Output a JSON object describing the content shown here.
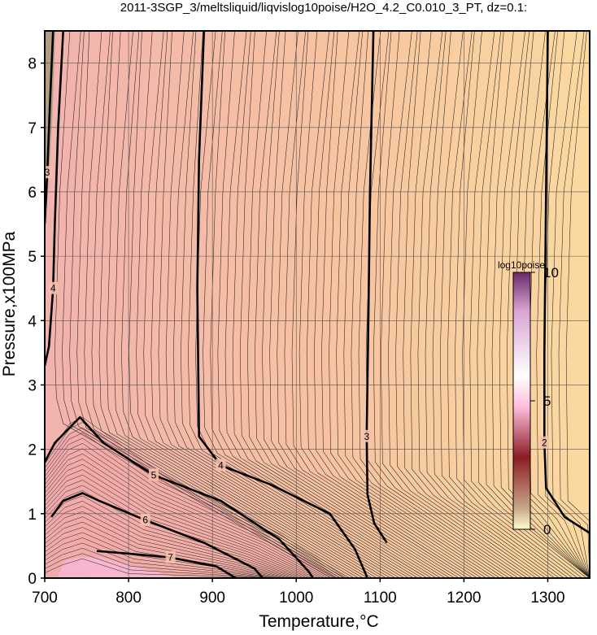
{
  "chart_data": {
    "type": "heatmap",
    "title": "2011-3SGP_3/meltsliquid/liqvislog10poise/H2O_4.2_C0.010_3_PT, dz=0.1:",
    "xlabel": "Temperature,°C",
    "ylabel": "Pressure,x100MPa",
    "xlim": [
      700,
      1350
    ],
    "ylim": [
      0,
      8.5
    ],
    "xticks": [
      700,
      800,
      900,
      1000,
      1100,
      1200,
      1300
    ],
    "yticks": [
      0,
      1,
      2,
      3,
      4,
      5,
      6,
      7,
      8
    ],
    "grid": true,
    "colorbar": {
      "label": "log10poise",
      "range": [
        0,
        10
      ],
      "ticks": [
        0,
        5,
        10
      ],
      "stops": [
        "#ffffcc",
        "#c9a98a",
        "#8c1c24",
        "#ffc0e0",
        "#ffffff",
        "#d9a4d2",
        "#6a2a6a"
      ]
    },
    "background_gradient": [
      "#f2b3ae",
      "#f7c4a0",
      "#fbd9a0"
    ],
    "major_contours": [
      {
        "level": 2,
        "points": [
          [
            1300,
            8.5
          ],
          [
            1298,
            6
          ],
          [
            1296,
            3.5
          ],
          [
            1296,
            2.1
          ],
          [
            1298,
            1.4
          ],
          [
            1320,
            0.95
          ],
          [
            1350,
            0.7
          ]
        ]
      },
      {
        "level": 3,
        "points": [
          [
            1092,
            8.5
          ],
          [
            1088,
            6
          ],
          [
            1086,
            4
          ],
          [
            1084,
            2.2
          ],
          [
            1085,
            1.3
          ],
          [
            1093,
            0.85
          ],
          [
            1108,
            0.55
          ]
        ]
      },
      {
        "level": 4,
        "points": [
          [
            890,
            8.5
          ],
          [
            884,
            6.5
          ],
          [
            882,
            4.5
          ],
          [
            884,
            2.2
          ],
          [
            910,
            1.75
          ],
          [
            970,
            1.45
          ],
          [
            1040,
            1.0
          ],
          [
            1070,
            0.45
          ],
          [
            1085,
            0
          ]
        ]
      },
      {
        "level": 4,
        "points": [
          [
            722,
            8.5
          ],
          [
            716,
            7
          ],
          [
            712,
            5.5
          ],
          [
            710,
            4.5
          ],
          [
            705,
            3.6
          ],
          [
            700,
            3.3
          ]
        ]
      },
      {
        "level": 3,
        "points": [
          [
            710,
            8.5
          ],
          [
            706,
            7.3
          ],
          [
            703,
            6.3
          ],
          [
            700,
            5.5
          ]
        ]
      },
      {
        "level": 5,
        "points": [
          [
            700,
            1.8
          ],
          [
            712,
            2.1
          ],
          [
            742,
            2.5
          ],
          [
            770,
            2.1
          ],
          [
            830,
            1.6
          ],
          [
            910,
            1.2
          ],
          [
            980,
            0.6
          ],
          [
            1015,
            0.1
          ],
          [
            1020,
            0
          ]
        ]
      },
      {
        "level": 6,
        "points": [
          [
            708,
            0.95
          ],
          [
            722,
            1.2
          ],
          [
            745,
            1.32
          ],
          [
            765,
            1.2
          ],
          [
            820,
            0.9
          ],
          [
            890,
            0.55
          ],
          [
            950,
            0.15
          ],
          [
            960,
            0
          ]
        ]
      },
      {
        "level": 7,
        "points": [
          [
            762,
            0.42
          ],
          [
            800,
            0.38
          ],
          [
            850,
            0.32
          ],
          [
            905,
            0.18
          ],
          [
            928,
            0
          ]
        ]
      }
    ],
    "contour_labels": [
      "2",
      "3",
      "4",
      "5",
      "6",
      "7"
    ]
  }
}
